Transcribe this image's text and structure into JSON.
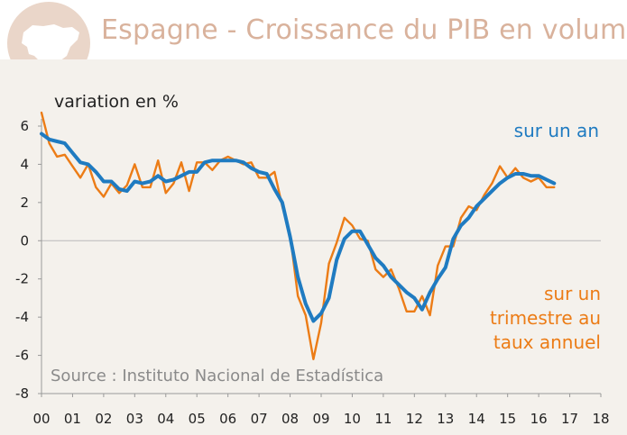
{
  "header": {
    "title": "Espagne - Croissance du PIB en volume"
  },
  "colors": {
    "title": "#d9b29c",
    "map": "#ead6c9",
    "panel": "#f4f1ec",
    "annual": "#1f7bc1",
    "quarterly": "#ec7c16",
    "source": "#8a8a8a"
  },
  "chart_data": {
    "type": "line",
    "title": "Espagne - Croissance du PIB en volume",
    "ylabel": "variation en %",
    "xlabel": "",
    "ylim": [
      -8,
      6
    ],
    "yticks": [
      6,
      4,
      2,
      0,
      -2,
      -4,
      -6,
      -8
    ],
    "xlim": [
      2000,
      2018
    ],
    "xtick_labels": [
      "00",
      "01",
      "02",
      "03",
      "04",
      "05",
      "06",
      "07",
      "08",
      "09",
      "10",
      "11",
      "12",
      "13",
      "14",
      "15",
      "16",
      "17",
      "18"
    ],
    "source": "Source : Instituto Nacional de Estadística",
    "series": [
      {
        "name": "sur un an",
        "label_lines": [
          "sur un an"
        ],
        "color": "#1f7bc1",
        "x_start": 2000.0,
        "x_step": 0.25,
        "values": [
          5.6,
          5.3,
          5.2,
          5.1,
          4.6,
          4.1,
          4.0,
          3.6,
          3.1,
          3.1,
          2.7,
          2.6,
          3.1,
          3.0,
          3.1,
          3.4,
          3.1,
          3.2,
          3.4,
          3.6,
          3.6,
          4.1,
          4.2,
          4.2,
          4.2,
          4.2,
          4.1,
          3.8,
          3.6,
          3.5,
          2.7,
          2.0,
          0.2,
          -1.9,
          -3.3,
          -4.2,
          -3.8,
          -3.0,
          -1.0,
          0.1,
          0.5,
          0.5,
          -0.2,
          -0.9,
          -1.3,
          -1.9,
          -2.3,
          -2.7,
          -3.0,
          -3.6,
          -2.7,
          -2.0,
          -1.4,
          0.1,
          0.8,
          1.2,
          1.8,
          2.2,
          2.6,
          3.0,
          3.3,
          3.5,
          3.5,
          3.4,
          3.4,
          3.2,
          3.0
        ]
      },
      {
        "name": "sur un trimestre au taux annuel",
        "label_lines": [
          "sur un",
          "trimestre au",
          "taux annuel"
        ],
        "color": "#ec7c16",
        "x_start": 2000.0,
        "x_step": 0.25,
        "values": [
          6.7,
          5.1,
          4.4,
          4.5,
          3.9,
          3.3,
          4.0,
          2.8,
          2.3,
          3.0,
          2.5,
          2.9,
          4.0,
          2.8,
          2.8,
          4.2,
          2.5,
          3.0,
          4.1,
          2.6,
          4.1,
          4.1,
          3.7,
          4.2,
          4.4,
          4.2,
          4.0,
          4.1,
          3.3,
          3.3,
          3.6,
          1.8,
          0.3,
          -2.9,
          -3.9,
          -6.2,
          -4.3,
          -1.2,
          -0.1,
          1.2,
          0.8,
          0.1,
          0.0,
          -1.5,
          -1.9,
          -1.5,
          -2.5,
          -3.7,
          -3.7,
          -2.9,
          -3.9,
          -1.3,
          -0.3,
          -0.3,
          1.2,
          1.8,
          1.6,
          2.4,
          3.0,
          3.9,
          3.3,
          3.8,
          3.3,
          3.1,
          3.3,
          2.8,
          2.8
        ]
      }
    ]
  }
}
